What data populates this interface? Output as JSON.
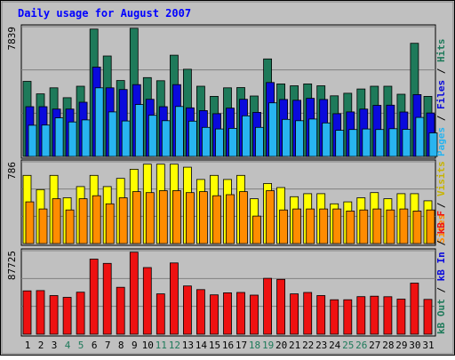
{
  "title": "Daily usage for August 2007",
  "colors": {
    "hits": "#1e7a5a",
    "files": "#0a0adc",
    "pages": "#28b4f0",
    "visits": "#ffff00",
    "sites": "#ff8c00",
    "kbytes": "#ee1111",
    "weekend_label": "#1e7a5a",
    "weekday_label": "#000080",
    "panel_bg": "#c0c0c0",
    "title_color": "#0000ff"
  },
  "chart_data": [
    {
      "type": "bar",
      "panel": "hits-files-pages",
      "y_max_label": "7839",
      "ylim": [
        0,
        7839
      ],
      "legend": [
        {
          "label": "Hits",
          "color": "#1e7a5a"
        },
        {
          "label": "Files",
          "color": "#0a0adc"
        },
        {
          "label": "Pages",
          "color": "#28b4f0"
        }
      ],
      "categories": [
        "1",
        "2",
        "3",
        "4",
        "5",
        "6",
        "7",
        "8",
        "9",
        "10",
        "11",
        "12",
        "13",
        "14",
        "15",
        "16",
        "17",
        "18",
        "19",
        "20",
        "21",
        "22",
        "23",
        "24",
        "25",
        "26",
        "27",
        "28",
        "29",
        "30",
        "31"
      ],
      "series": [
        {
          "name": "Hits",
          "values": [
            4600,
            3830,
            4200,
            3600,
            4300,
            7800,
            6150,
            4650,
            7850,
            4830,
            4640,
            6200,
            5340,
            4300,
            3680,
            4200,
            4220,
            3700,
            5970,
            4440,
            4330,
            4440,
            4330,
            3710,
            3870,
            4130,
            4300,
            4300,
            3810,
            6930,
            3680
          ]
        },
        {
          "name": "Files",
          "values": [
            3050,
            3050,
            2900,
            2900,
            3320,
            5470,
            4200,
            4100,
            4400,
            3500,
            3050,
            4400,
            2980,
            2810,
            2620,
            2960,
            3500,
            2700,
            4530,
            3490,
            3440,
            3560,
            3490,
            2620,
            2730,
            2900,
            3130,
            3140,
            2720,
            3790,
            2660
          ]
        },
        {
          "name": "Pages",
          "values": [
            1910,
            1920,
            2360,
            2110,
            2240,
            4200,
            2730,
            2170,
            3180,
            2520,
            2190,
            3060,
            2160,
            1780,
            1680,
            1720,
            2490,
            1780,
            3280,
            2270,
            2190,
            2290,
            2050,
            1600,
            1650,
            1680,
            1650,
            1700,
            1660,
            2390,
            1440
          ]
        }
      ]
    },
    {
      "type": "bar",
      "panel": "visits-sites",
      "y_max_label": "786",
      "ylim": [
        0,
        786
      ],
      "legend": [
        {
          "label": "Visits",
          "color": "#ffff00"
        },
        {
          "label": "Sites",
          "color": "#ff8c00"
        }
      ],
      "categories": [
        "1",
        "2",
        "3",
        "4",
        "5",
        "6",
        "7",
        "8",
        "9",
        "10",
        "11",
        "12",
        "13",
        "14",
        "15",
        "16",
        "17",
        "18",
        "19",
        "20",
        "21",
        "22",
        "23",
        "24",
        "25",
        "26",
        "27",
        "28",
        "29",
        "30",
        "31"
      ],
      "series": [
        {
          "name": "Visits",
          "values": [
            670,
            530,
            670,
            450,
            560,
            670,
            560,
            640,
            730,
            780,
            780,
            780,
            750,
            630,
            670,
            630,
            670,
            440,
            590,
            550,
            460,
            490,
            490,
            390,
            410,
            450,
            500,
            440,
            490,
            490,
            420
          ]
        },
        {
          "name": "Sites",
          "values": [
            410,
            340,
            440,
            330,
            440,
            470,
            390,
            450,
            510,
            500,
            520,
            520,
            500,
            510,
            470,
            480,
            510,
            270,
            520,
            330,
            340,
            340,
            340,
            340,
            320,
            330,
            340,
            330,
            340,
            320,
            330
          ]
        }
      ]
    },
    {
      "type": "bar",
      "panel": "kbytes",
      "y_max_label": "87725",
      "ylim": [
        0,
        87725
      ],
      "legend": [
        {
          "label": "kB F",
          "color": "#ee1111"
        },
        {
          "label": "kB In",
          "color": "#0a0adc"
        },
        {
          "label": "kB Out",
          "color": "#1e7a5a"
        }
      ],
      "categories": [
        "1",
        "2",
        "3",
        "4",
        "5",
        "6",
        "7",
        "8",
        "9",
        "10",
        "11",
        "12",
        "13",
        "14",
        "15",
        "16",
        "17",
        "18",
        "19",
        "20",
        "21",
        "22",
        "23",
        "24",
        "25",
        "26",
        "27",
        "28",
        "29",
        "30",
        "31"
      ],
      "series": [
        {
          "name": "kB F",
          "values": [
            46500,
            46800,
            41500,
            39600,
            45100,
            80600,
            76000,
            50300,
            88000,
            71500,
            43300,
            76500,
            51800,
            47900,
            42200,
            44400,
            44800,
            42000,
            60000,
            58800,
            43300,
            44800,
            41500,
            37000,
            37000,
            40300,
            40800,
            40200,
            37700,
            54800,
            37400
          ]
        }
      ]
    }
  ],
  "x_labels": [
    {
      "text": "1",
      "weekend": false
    },
    {
      "text": "2",
      "weekend": false
    },
    {
      "text": "3",
      "weekend": false
    },
    {
      "text": "4",
      "weekend": true
    },
    {
      "text": "5",
      "weekend": true
    },
    {
      "text": "6",
      "weekend": false
    },
    {
      "text": "7",
      "weekend": false
    },
    {
      "text": "8",
      "weekend": false
    },
    {
      "text": "9",
      "weekend": false
    },
    {
      "text": "10",
      "weekend": false
    },
    {
      "text": "11",
      "weekend": true
    },
    {
      "text": "12",
      "weekend": true
    },
    {
      "text": "13",
      "weekend": false
    },
    {
      "text": "14",
      "weekend": false
    },
    {
      "text": "15",
      "weekend": false
    },
    {
      "text": "16",
      "weekend": false
    },
    {
      "text": "17",
      "weekend": false
    },
    {
      "text": "18",
      "weekend": true
    },
    {
      "text": "19",
      "weekend": true
    },
    {
      "text": "20",
      "weekend": false
    },
    {
      "text": "21",
      "weekend": false
    },
    {
      "text": "22",
      "weekend": false
    },
    {
      "text": "23",
      "weekend": false
    },
    {
      "text": "24",
      "weekend": false
    },
    {
      "text": "25",
      "weekend": true
    },
    {
      "text": "26",
      "weekend": true
    },
    {
      "text": "27",
      "weekend": false
    },
    {
      "text": "28",
      "weekend": false
    },
    {
      "text": "29",
      "weekend": false
    },
    {
      "text": "30",
      "weekend": false
    },
    {
      "text": "31",
      "weekend": false
    }
  ]
}
